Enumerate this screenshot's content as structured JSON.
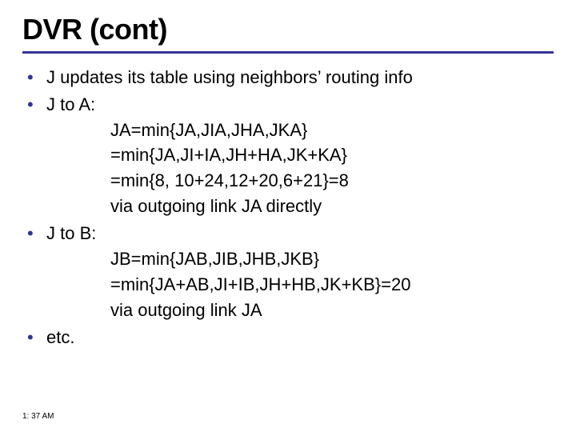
{
  "colors": {
    "accent": "#333399",
    "text": "#000000",
    "background": "#ffffff"
  },
  "typography": {
    "title_font": "Arial Black",
    "title_fontsize_pt": 36,
    "title_weight": 900,
    "body_font": "Verdana",
    "body_fontsize_pt": 22,
    "timestamp_fontsize_pt": 10
  },
  "title": "DVR (cont)",
  "bullets": [
    {
      "text": "J updates its table using neighbors’ routing info",
      "sub": []
    },
    {
      "text": "J to A:",
      "sub": [
        "JA=min{JA,JIA,JHA,JKA}",
        "    =min{JA,JI+IA,JH+HA,JK+KA}",
        "    =min{8, 10+24,12+20,6+21}=8",
        "via outgoing link JA directly"
      ]
    },
    {
      "text": "J to B:",
      "sub": [
        "JB=min{JAB,JIB,JHB,JKB}",
        "    =min{JA+AB,JI+IB,JH+HB,JK+KB}=20",
        "via outgoing link JA"
      ]
    },
    {
      "text": "etc.",
      "sub": []
    }
  ],
  "timestamp": "1: 37 AM"
}
